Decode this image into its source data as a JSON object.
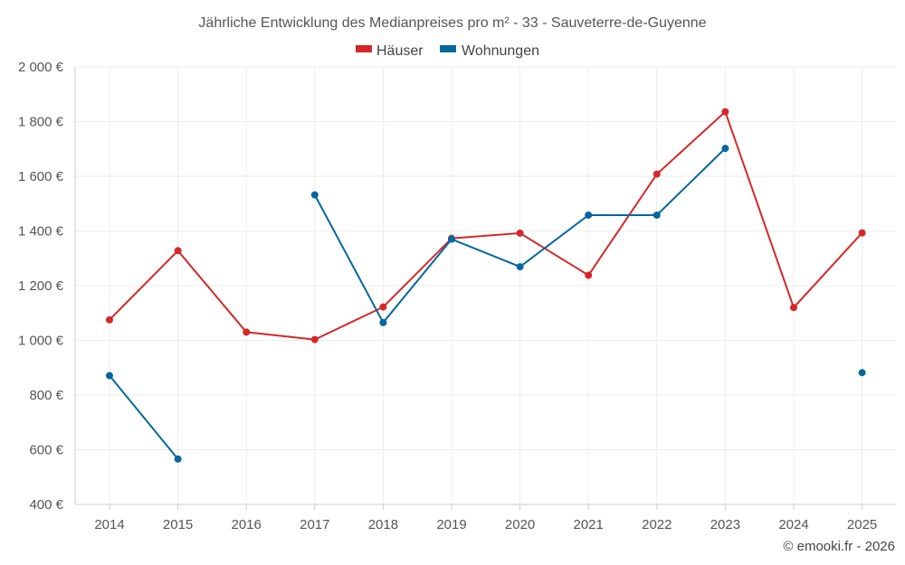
{
  "chart_data": {
    "type": "line",
    "title": "Jährliche Entwicklung des Medianpreises pro m² - 33 - Sauveterre-de-Guyenne",
    "categories": [
      "2014",
      "2015",
      "2016",
      "2017",
      "2018",
      "2019",
      "2020",
      "2021",
      "2022",
      "2023",
      "2024",
      "2025"
    ],
    "ylim": [
      400,
      2000
    ],
    "yticks": [
      400,
      600,
      800,
      1000,
      1200,
      1400,
      1600,
      1800,
      2000
    ],
    "ytick_labels": [
      "400 €",
      "600 €",
      "800 €",
      "1 000 €",
      "1 200 €",
      "1 400 €",
      "1 600 €",
      "1 800 €",
      "2 000 €"
    ],
    "legend_position": "top-center",
    "grid": true,
    "series": [
      {
        "name": "Häuser",
        "color": "#d62728",
        "values": [
          1075,
          1328,
          1030,
          1003,
          1122,
          1373,
          1392,
          1238,
          1608,
          1836,
          1120,
          1393
        ]
      },
      {
        "name": "Wohnungen",
        "color": "#04679e",
        "values": [
          871,
          566,
          null,
          1532,
          1065,
          1370,
          1269,
          1458,
          1458,
          1702,
          null,
          882
        ]
      }
    ]
  },
  "credit": "© emooki.fr - 2026"
}
